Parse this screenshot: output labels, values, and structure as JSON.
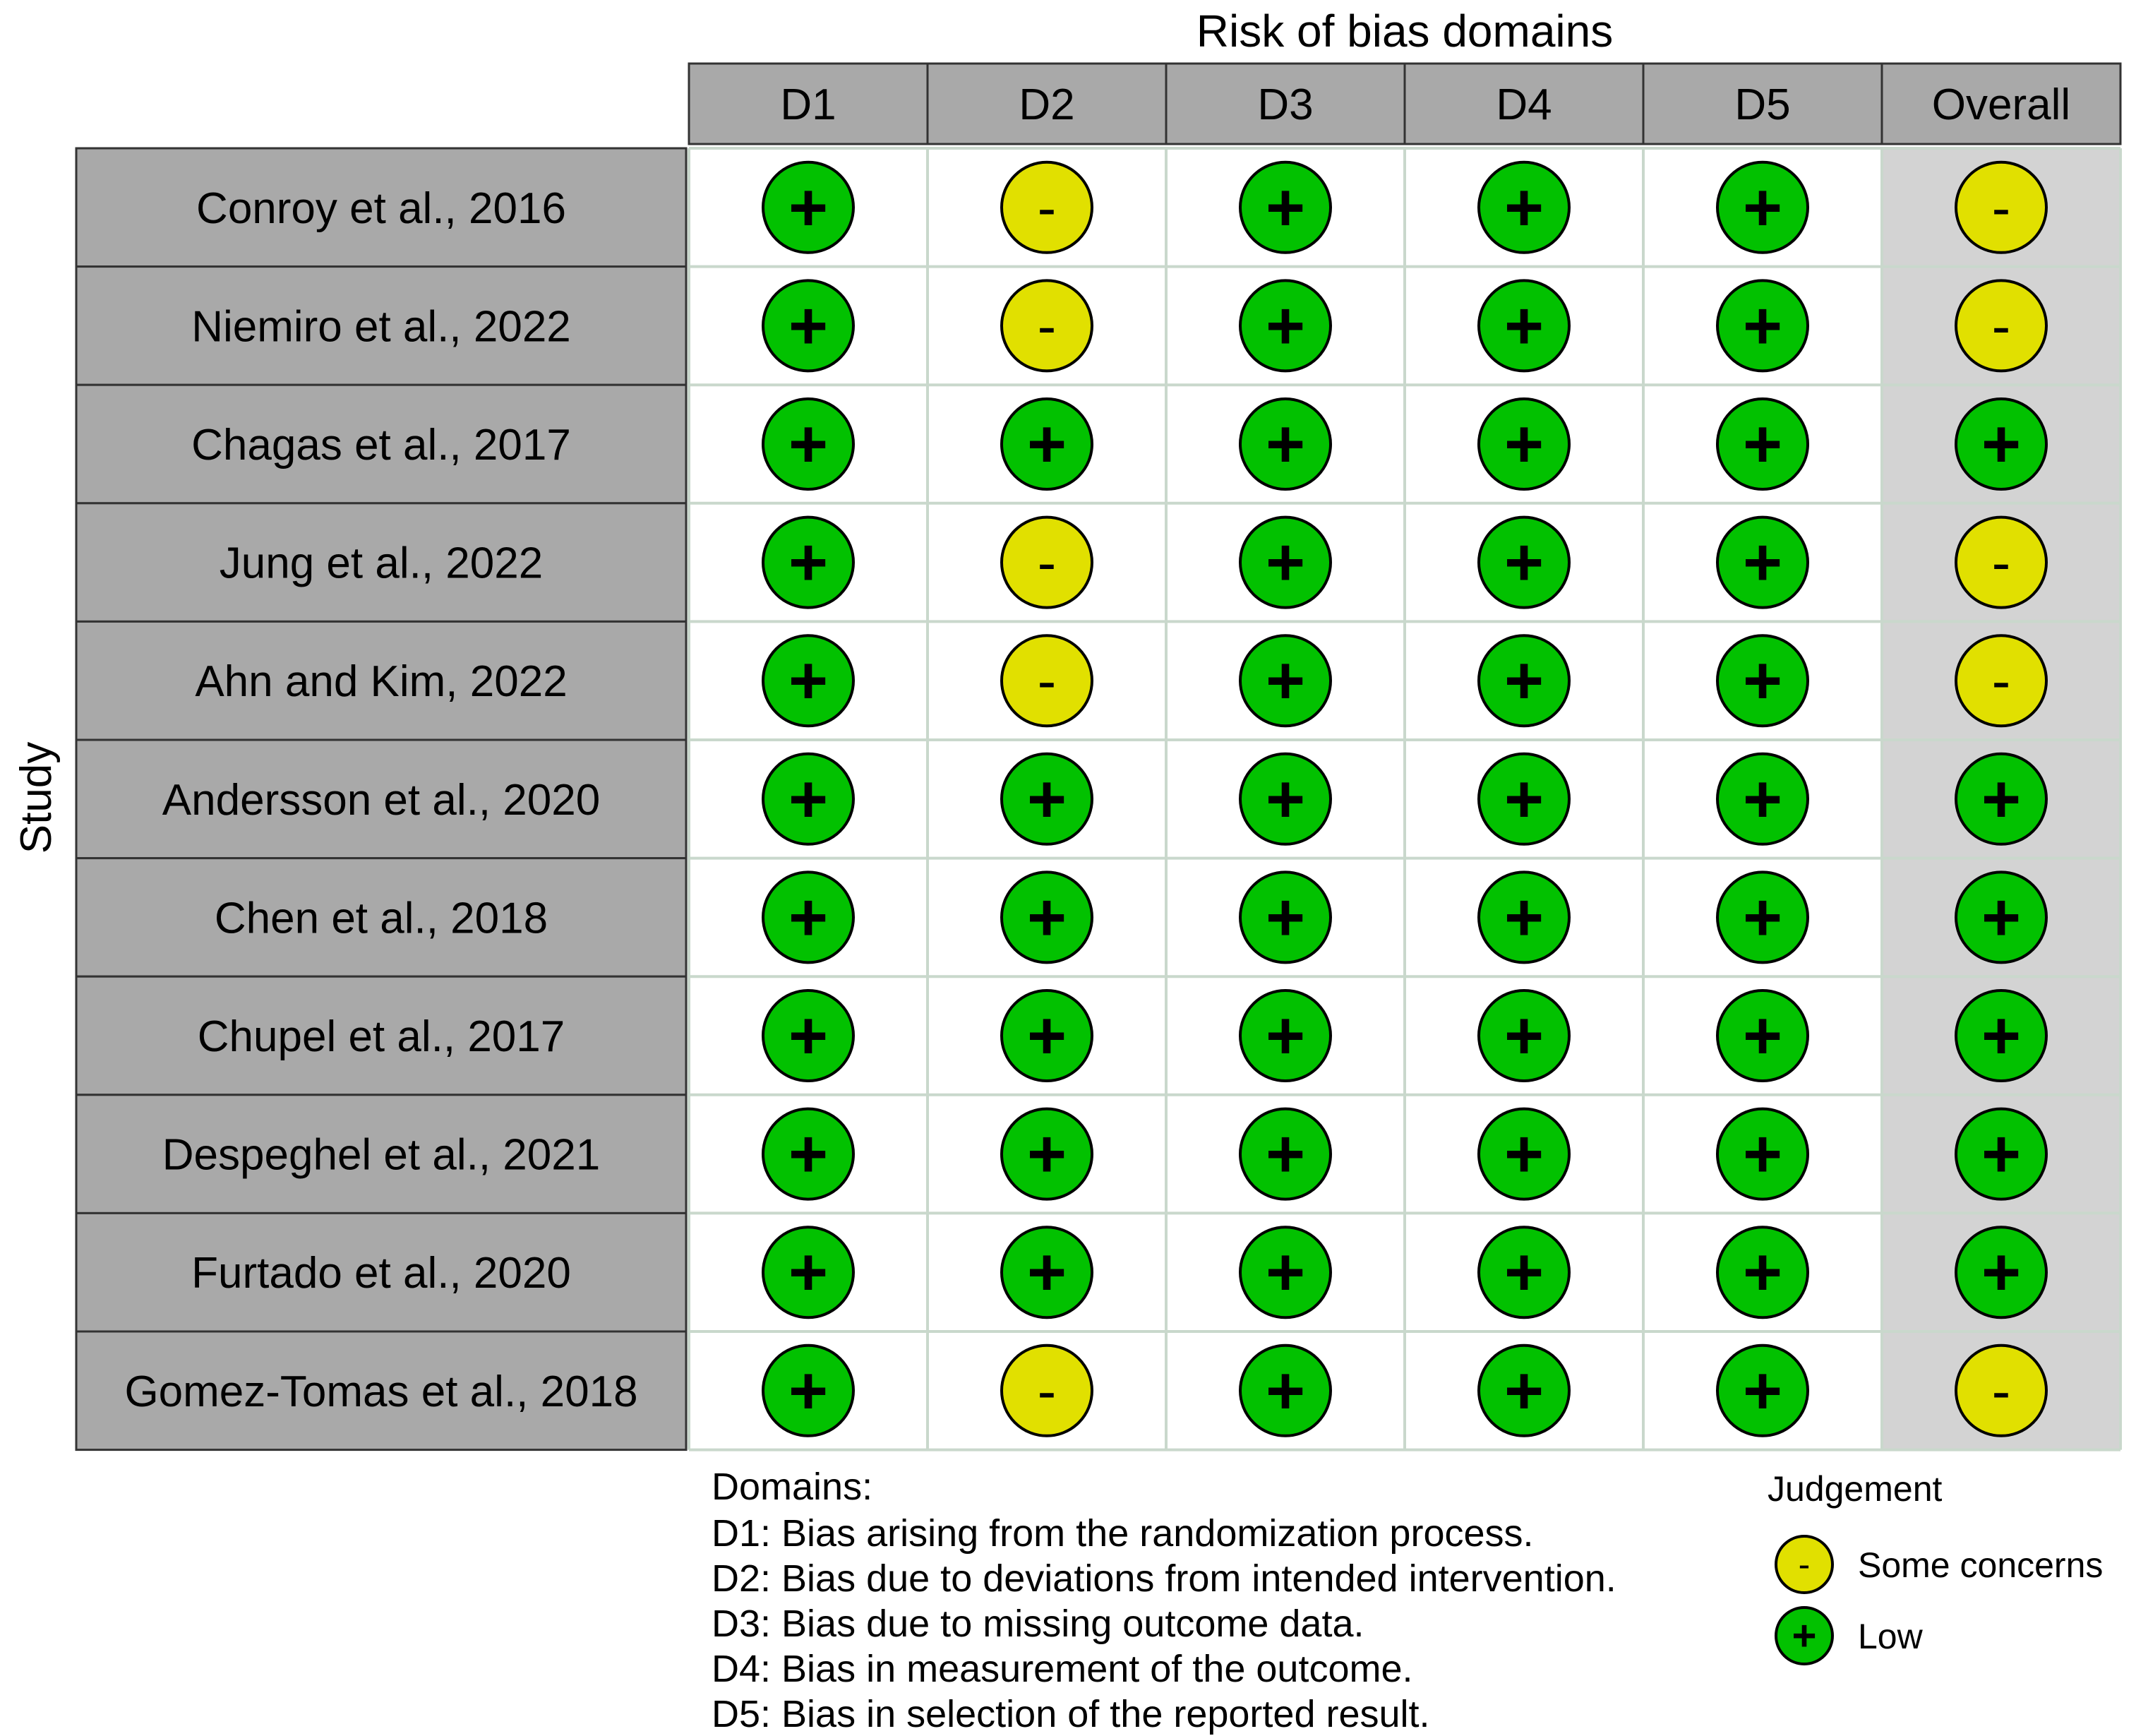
{
  "chart_data": {
    "type": "table",
    "title": "Risk of bias domains",
    "ylabel": "Study",
    "columns": [
      "D1",
      "D2",
      "D3",
      "D4",
      "D5",
      "Overall"
    ],
    "studies": [
      "Conroy et al., 2016",
      "Niemiro et al., 2022",
      "Chagas et al., 2017",
      "Jung et al., 2022",
      "Ahn and Kim, 2022",
      "Andersson et al., 2020",
      "Chen et al., 2018",
      "Chupel et al., 2017",
      "Despeghel et al., 2021",
      "Furtado et al., 2020",
      "Gomez-Tomas et al., 2018"
    ],
    "judgements": [
      [
        "+",
        "-",
        "+",
        "+",
        "+",
        "-"
      ],
      [
        "+",
        "-",
        "+",
        "+",
        "+",
        "-"
      ],
      [
        "+",
        "+",
        "+",
        "+",
        "+",
        "+"
      ],
      [
        "+",
        "-",
        "+",
        "+",
        "+",
        "-"
      ],
      [
        "+",
        "-",
        "+",
        "+",
        "+",
        "-"
      ],
      [
        "+",
        "+",
        "+",
        "+",
        "+",
        "+"
      ],
      [
        "+",
        "+",
        "+",
        "+",
        "+",
        "+"
      ],
      [
        "+",
        "+",
        "+",
        "+",
        "+",
        "+"
      ],
      [
        "+",
        "+",
        "+",
        "+",
        "+",
        "+"
      ],
      [
        "+",
        "+",
        "+",
        "+",
        "+",
        "+"
      ],
      [
        "+",
        "-",
        "+",
        "+",
        "+",
        "-"
      ]
    ],
    "domains_title": "Domains:",
    "domains": [
      "D1: Bias arising from the randomization process.",
      "D2: Bias due to deviations from intended intervention.",
      "D3: Bias due to missing outcome data.",
      "D4: Bias in measurement of the outcome.",
      "D5: Bias in selection of the reported result."
    ],
    "legend": {
      "title": "Judgement",
      "items": [
        {
          "symbol": "-",
          "label": "Some concerns",
          "color": "#e1e000"
        },
        {
          "symbol": "+",
          "label": "Low",
          "color": "#02c100"
        }
      ]
    },
    "colors": {
      "low": "#02c100",
      "some_concerns": "#e1e000",
      "header_fill": "#a9a9a9",
      "overall_fill": "#d3d3d3"
    }
  }
}
